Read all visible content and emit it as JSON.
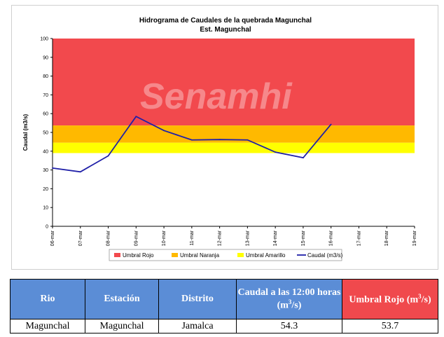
{
  "chart_data": {
    "type": "line",
    "title": "Hidrograma de Caudales de la quebrada Magunchal",
    "subtitle": "Est. Magunchal",
    "ylabel": "Caudal (m3/s)",
    "xlabel": "",
    "ylim": [
      0,
      100
    ],
    "yticks": [
      0,
      10,
      20,
      30,
      40,
      50,
      60,
      70,
      80,
      90,
      100
    ],
    "categories": [
      "06-mar",
      "07-mar",
      "08-mar",
      "09-mar",
      "10-mar",
      "11-mar",
      "12-mar",
      "13-mar",
      "14-mar",
      "15-mar",
      "16-mar",
      "17-mar",
      "18-mar",
      "19-mar"
    ],
    "series": [
      {
        "name": "Caudal (m3/s)",
        "color": "#1f1fa8",
        "points": [
          {
            "x": "06-mar",
            "y": 31.0
          },
          {
            "x": "07-mar",
            "y": 29.0
          },
          {
            "x": "08-mar",
            "y": 37.5
          },
          {
            "x": "09-mar",
            "y": 58.5
          },
          {
            "x": "10-mar",
            "y": 51.0
          },
          {
            "x": "11-mar",
            "y": 46.0
          },
          {
            "x": "12-mar",
            "y": 46.2
          },
          {
            "x": "13-mar",
            "y": 46.0
          },
          {
            "x": "14-mar",
            "y": 39.5
          },
          {
            "x": "15-mar",
            "y": 36.5
          },
          {
            "x": "16-mar",
            "y": 54.3
          }
        ]
      }
    ],
    "bands": [
      {
        "name": "Umbral Rojo",
        "from": 53.7,
        "to": 100,
        "color": "#f2494d"
      },
      {
        "name": "Umbral Naranja",
        "from": 44.5,
        "to": 53.7,
        "color": "#ffb900"
      },
      {
        "name": "Umbral Amarillo",
        "from": 39.0,
        "to": 44.5,
        "color": "#ffff00"
      }
    ],
    "legend_position": "bottom",
    "grid": false,
    "watermark": "Senamhi"
  },
  "table": {
    "headers": [
      "Rio",
      "Estación",
      "Distrito",
      "Caudal a las 12:00 horas (m",
      "Umbral Rojo (m"
    ],
    "header_units": [
      "3",
      "/s)",
      "3",
      "/s)"
    ],
    "row": [
      "Magunchal",
      "Magunchal",
      "Jamalca",
      "54.3",
      "53.7"
    ]
  }
}
